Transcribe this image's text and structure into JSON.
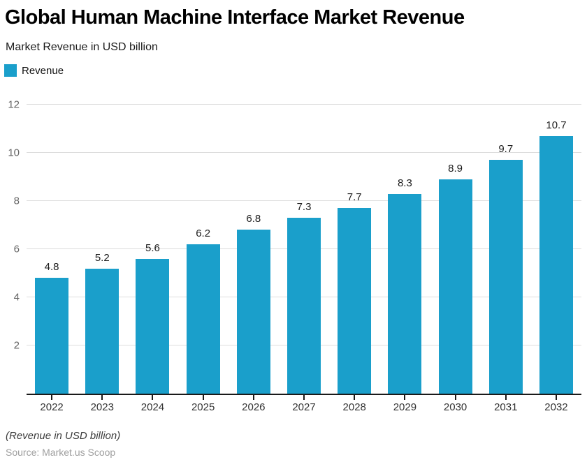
{
  "header": {
    "title": "Global Human Machine Interface Market Revenue",
    "subtitle": "Market Revenue in USD billion"
  },
  "legend": {
    "items": [
      {
        "label": "Revenue",
        "color": "#1A9FCB"
      }
    ]
  },
  "chart_data": {
    "type": "bar",
    "title": "Global Human Machine Interface Market Revenue",
    "subtitle": "Market Revenue in USD billion",
    "categories": [
      "2022",
      "2023",
      "2024",
      "2025",
      "2026",
      "2027",
      "2028",
      "2029",
      "2030",
      "2031",
      "2032"
    ],
    "series": [
      {
        "name": "Revenue",
        "color": "#1A9FCB",
        "values": [
          4.8,
          5.2,
          5.6,
          6.2,
          6.8,
          7.3,
          7.7,
          8.3,
          8.9,
          9.7,
          10.7
        ]
      }
    ],
    "xlabel": "",
    "ylabel": "",
    "ylim": [
      0,
      12
    ],
    "yticks": [
      2,
      4,
      6,
      8,
      10,
      12
    ],
    "grid": true,
    "value_labels": true,
    "legend_position": "top-left"
  },
  "footer": {
    "note": "(Revenue in USD billion)",
    "source": "Source: Market.us Scoop"
  },
  "colors": {
    "bar": "#1A9FCB",
    "gridline": "#DDDDDD",
    "axis_line": "#1A1A1A",
    "y_axis_label": "#666666",
    "x_axis_label": "#333333",
    "value_label": "#1C1C1C"
  }
}
